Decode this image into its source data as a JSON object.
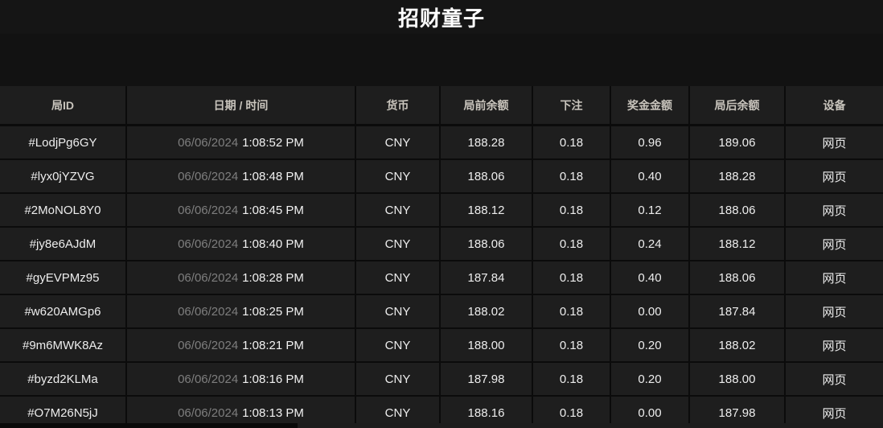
{
  "title": "招财童子",
  "table": {
    "columns": [
      {
        "key": "id",
        "label": "局ID"
      },
      {
        "key": "datetime",
        "label": "日期 / 时间"
      },
      {
        "key": "currency",
        "label": "货币"
      },
      {
        "key": "balance_before",
        "label": "局前余额"
      },
      {
        "key": "bet",
        "label": "下注"
      },
      {
        "key": "win",
        "label": "奖金金额"
      },
      {
        "key": "balance_after",
        "label": "局后余额"
      },
      {
        "key": "device",
        "label": "设备"
      }
    ],
    "rows": [
      {
        "id": "#LodjPg6GY",
        "date": "06/06/2024",
        "time": "1:08:52 PM",
        "currency": "CNY",
        "balance_before": "188.28",
        "bet": "0.18",
        "win": "0.96",
        "balance_after": "189.06",
        "device": "网页"
      },
      {
        "id": "#lyx0jYZVG",
        "date": "06/06/2024",
        "time": "1:08:48 PM",
        "currency": "CNY",
        "balance_before": "188.06",
        "bet": "0.18",
        "win": "0.40",
        "balance_after": "188.28",
        "device": "网页"
      },
      {
        "id": "#2MoNOL8Y0",
        "date": "06/06/2024",
        "time": "1:08:45 PM",
        "currency": "CNY",
        "balance_before": "188.12",
        "bet": "0.18",
        "win": "0.12",
        "balance_after": "188.06",
        "device": "网页"
      },
      {
        "id": "#jy8e6AJdM",
        "date": "06/06/2024",
        "time": "1:08:40 PM",
        "currency": "CNY",
        "balance_before": "188.06",
        "bet": "0.18",
        "win": "0.24",
        "balance_after": "188.12",
        "device": "网页"
      },
      {
        "id": "#gyEVPMz95",
        "date": "06/06/2024",
        "time": "1:08:28 PM",
        "currency": "CNY",
        "balance_before": "187.84",
        "bet": "0.18",
        "win": "0.40",
        "balance_after": "188.06",
        "device": "网页"
      },
      {
        "id": "#w620AMGp6",
        "date": "06/06/2024",
        "time": "1:08:25 PM",
        "currency": "CNY",
        "balance_before": "188.02",
        "bet": "0.18",
        "win": "0.00",
        "balance_after": "187.84",
        "device": "网页"
      },
      {
        "id": "#9m6MWK8Az",
        "date": "06/06/2024",
        "time": "1:08:21 PM",
        "currency": "CNY",
        "balance_before": "188.00",
        "bet": "0.18",
        "win": "0.20",
        "balance_after": "188.02",
        "device": "网页"
      },
      {
        "id": "#byzd2KLMa",
        "date": "06/06/2024",
        "time": "1:08:16 PM",
        "currency": "CNY",
        "balance_before": "187.98",
        "bet": "0.18",
        "win": "0.20",
        "balance_after": "188.00",
        "device": "网页"
      },
      {
        "id": "#O7M26N5jJ",
        "date": "06/06/2024",
        "time": "1:08:13 PM",
        "currency": "CNY",
        "balance_before": "188.16",
        "bet": "0.18",
        "win": "0.00",
        "balance_after": "187.98",
        "device": "网页"
      }
    ]
  }
}
